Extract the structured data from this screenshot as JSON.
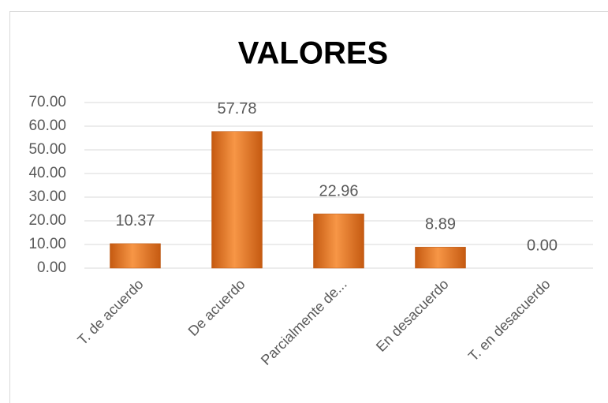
{
  "chart_data": {
    "type": "bar",
    "title": "VALORES",
    "categories": [
      "T. de acuerdo",
      "De acuerdo",
      "Parcialmente de...",
      "En desacuerdo",
      "T. en desacuerdo"
    ],
    "values": [
      10.37,
      57.78,
      22.96,
      8.89,
      0.0
    ],
    "value_labels": [
      "10.37",
      "57.78",
      "22.96",
      "8.89",
      "0.00"
    ],
    "color": "#e46c0a",
    "ylim": [
      0,
      70
    ],
    "yticks": [
      {
        "value": 0,
        "label": "0.00"
      },
      {
        "value": 10,
        "label": "10.00"
      },
      {
        "value": 20,
        "label": "20.00"
      },
      {
        "value": 30,
        "label": "30.00"
      },
      {
        "value": 40,
        "label": "40.00"
      },
      {
        "value": 50,
        "label": "50.00"
      },
      {
        "value": 60,
        "label": "60.00"
      },
      {
        "value": 70,
        "label": "70.00"
      }
    ],
    "grid": true
  }
}
